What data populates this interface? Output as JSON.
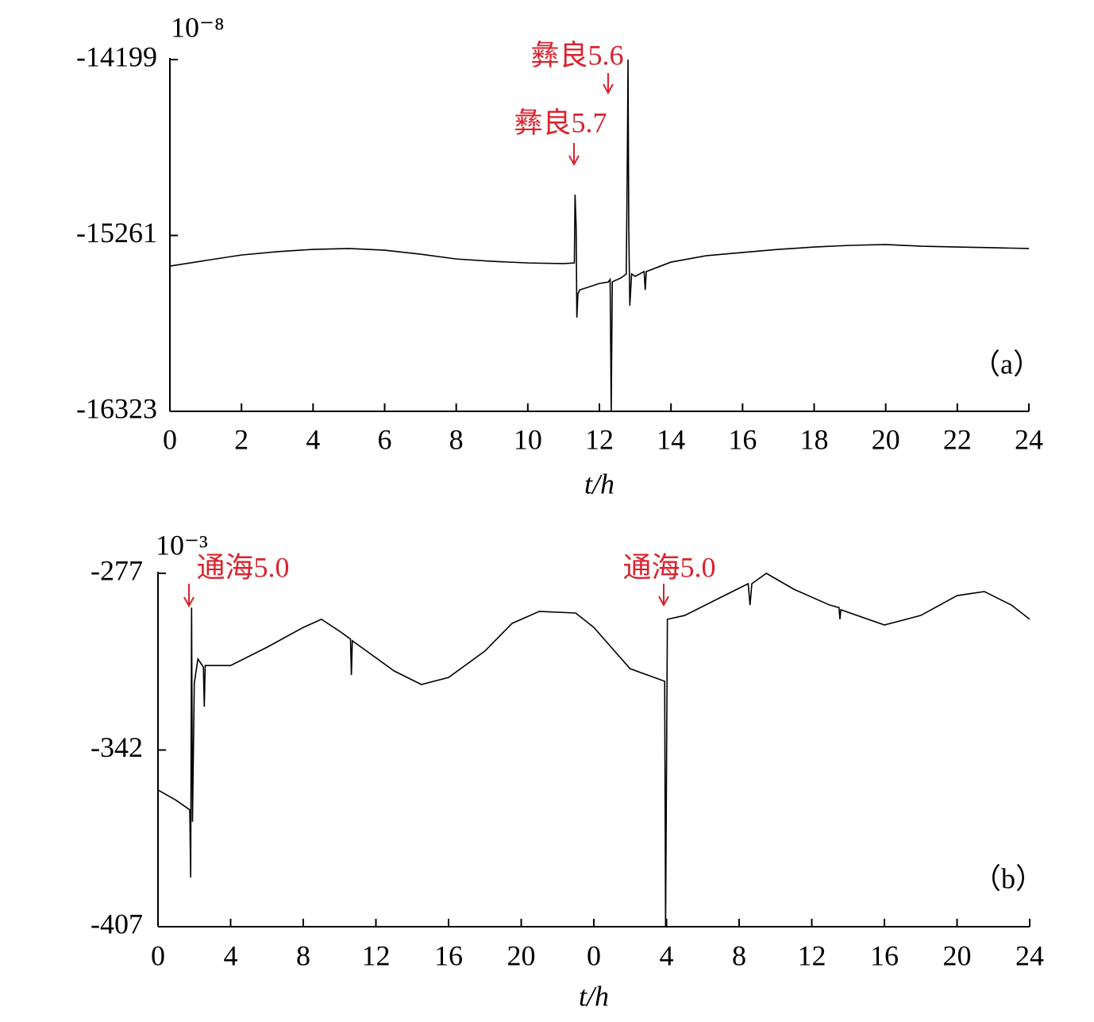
{
  "chart_data": [
    {
      "type": "line",
      "exponent_label": "10⁻⁸",
      "xlabel": "t/h",
      "panel_label": "（a）",
      "annotations": [
        "彝良5.6",
        "彝良5.7"
      ],
      "annotation_color": "#d9232e",
      "xlim": [
        0,
        24
      ],
      "xticks": [
        0,
        2,
        4,
        6,
        8,
        10,
        12,
        14,
        16,
        18,
        20,
        22,
        24
      ],
      "ylim": [
        -16323,
        -14199
      ],
      "yticks": [
        -16323,
        -15261,
        -14199
      ],
      "series": [
        {
          "color": "#000000",
          "x": [
            0,
            1,
            2,
            3,
            4,
            5,
            6,
            7,
            8,
            9,
            10,
            11,
            11.3,
            11.32,
            11.35,
            11.37,
            11.4,
            11.45,
            12,
            12.25,
            12.3,
            12.33,
            12.36,
            12.4,
            12.6,
            12.75,
            12.78,
            12.8,
            12.82,
            12.85,
            12.9,
            13,
            13.25,
            13.28,
            13.31,
            14,
            15,
            16,
            17,
            18,
            19,
            20,
            21,
            22,
            23,
            24
          ],
          "values": [
            -15446,
            -15412,
            -15379,
            -15359,
            -15345,
            -15340,
            -15350,
            -15374,
            -15403,
            -15417,
            -15427,
            -15431,
            -15427,
            -15014,
            -15206,
            -15757,
            -15614,
            -15590,
            -15551,
            -15542,
            -15527,
            -16323,
            -15542,
            -15537,
            -15518,
            -15494,
            -14822,
            -14199,
            -15206,
            -15685,
            -15494,
            -15508,
            -15479,
            -15590,
            -15479,
            -15422,
            -15383,
            -15364,
            -15345,
            -15331,
            -15321,
            -15316,
            -15326,
            -15331,
            -15335,
            -15340
          ]
        }
      ]
    },
    {
      "type": "line",
      "exponent_label": "10⁻³",
      "xlabel": "t/h",
      "panel_label": "（b）",
      "annotations": [
        "通海5.0",
        "通海5.0"
      ],
      "annotation_color": "#d9232e",
      "xlim": [
        0,
        48
      ],
      "xticks": [
        0,
        4,
        8,
        12,
        16,
        20,
        {
          "value": 24,
          "label": "0"
        },
        {
          "value": 28,
          "label": "4"
        },
        {
          "value": 32,
          "label": "8"
        },
        {
          "value": 36,
          "label": "12"
        },
        {
          "value": 40,
          "label": "16"
        },
        {
          "value": 44,
          "label": "20"
        },
        {
          "value": 48,
          "label": "24"
        }
      ],
      "ylim": [
        -407,
        -277
      ],
      "yticks": [
        -407,
        -342,
        -277
      ],
      "series": [
        {
          "color": "#000000",
          "x": [
            0,
            1,
            1.75,
            1.8,
            1.85,
            1.9,
            2.0,
            2.2,
            2.5,
            2.55,
            2.6,
            4,
            6,
            8,
            9,
            10,
            10.6,
            10.65,
            10.7,
            13,
            14.5,
            16,
            18,
            19.5,
            21,
            23,
            24,
            26,
            27.9,
            27.95,
            28.05,
            29,
            31,
            32.5,
            32.6,
            32.7,
            33.5,
            35,
            37,
            37.5,
            37.55,
            37.6,
            40,
            42,
            44,
            45.5,
            47,
            48
          ],
          "values": [
            -356.7,
            -360.5,
            -364,
            -388.9,
            -289.6,
            -368.4,
            -317.3,
            -308.5,
            -311.5,
            -326.1,
            -310.9,
            -310.9,
            -304.2,
            -296.9,
            -293.9,
            -298.3,
            -301.2,
            -314.4,
            -301.8,
            -312.9,
            -317.9,
            -315.3,
            -305.6,
            -295.4,
            -291,
            -291.6,
            -296.9,
            -312.1,
            -316.7,
            -407,
            -293.9,
            -292.5,
            -285.8,
            -280.8,
            -288.7,
            -280.8,
            -277,
            -282.8,
            -288.7,
            -289.6,
            -293.9,
            -290.4,
            -296,
            -292.5,
            -285.2,
            -283.7,
            -288.7,
            -293.9
          ]
        }
      ]
    }
  ]
}
